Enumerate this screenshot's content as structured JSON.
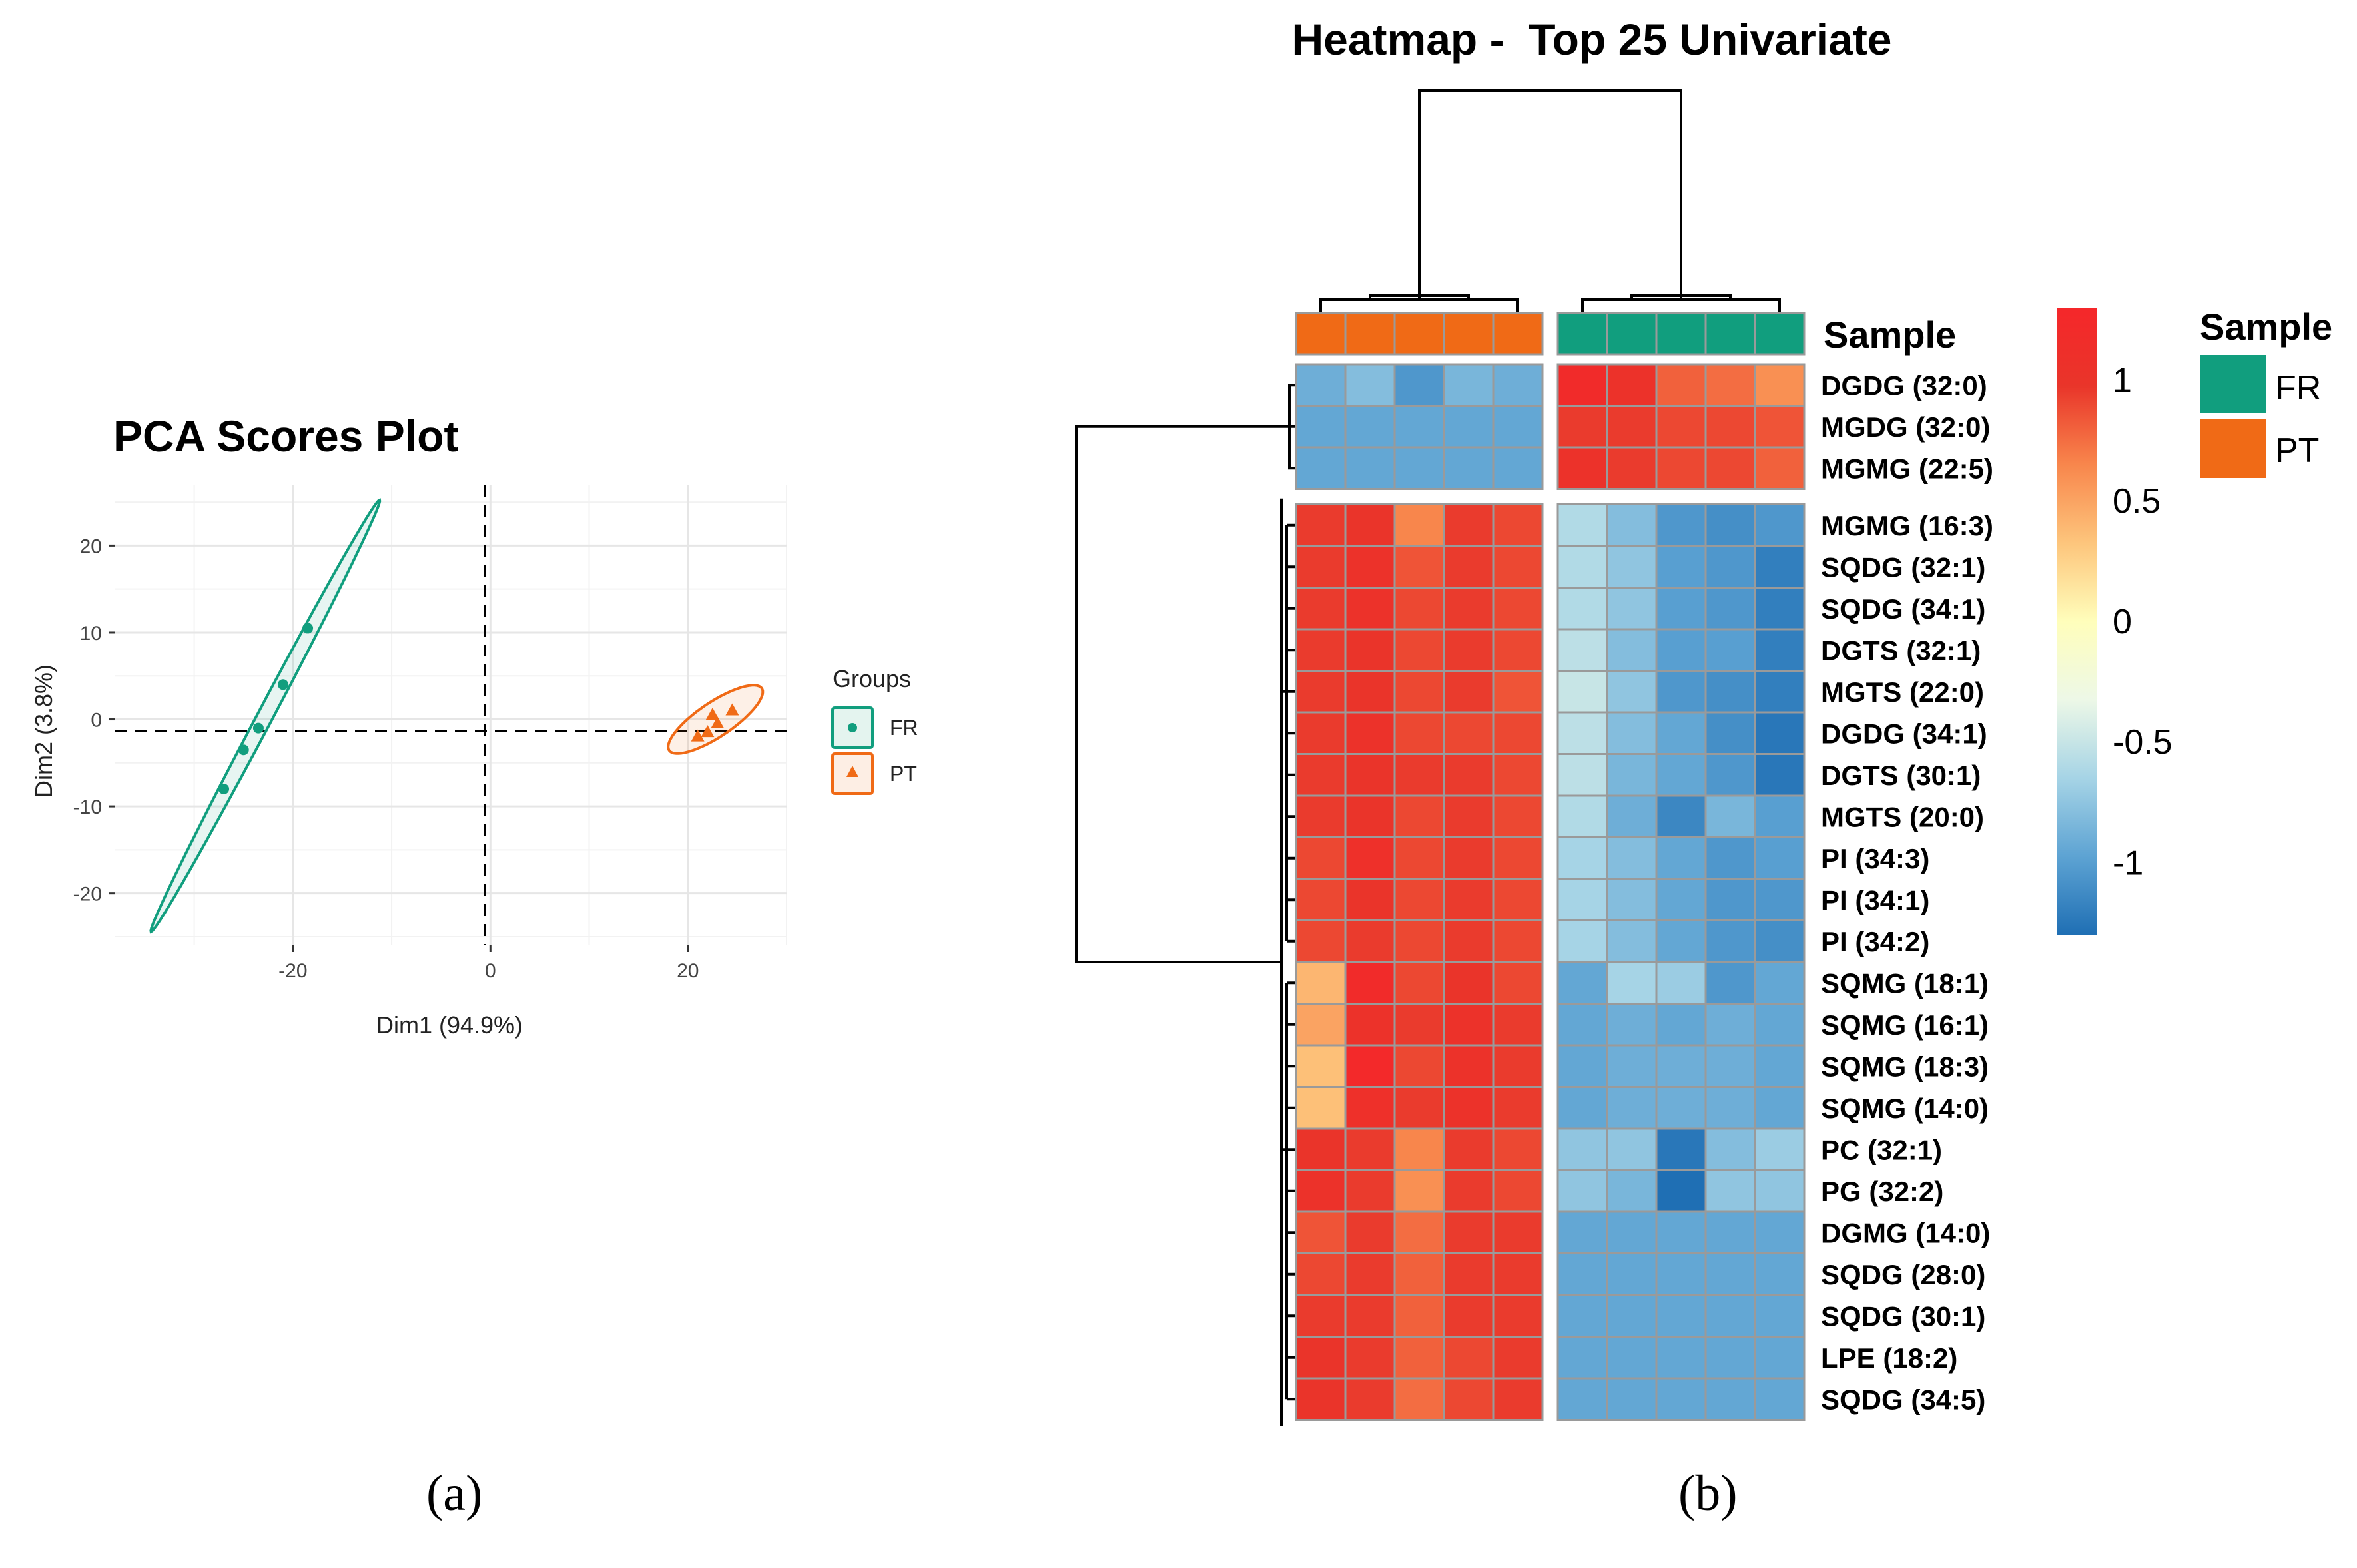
{
  "panel_labels": {
    "a": "(a)",
    "b": "(b)"
  },
  "colors": {
    "FR": "#119e7e",
    "PT": "#f06a16",
    "gradient": [
      "#1f6fb4",
      "#5da3d3",
      "#a6d4e6",
      "#edf8e7",
      "#fffebb",
      "#fdc57c",
      "#f8864c",
      "#e9352a",
      "#f5272a"
    ]
  },
  "chart_data": [
    {
      "type": "scatter",
      "title": "PCA Scores Plot",
      "xlabel": "Dim1 (94.9%)",
      "ylabel": "Dim2 (3.8%)",
      "xlim": [
        -38,
        30
      ],
      "ylim": [
        -26,
        27
      ],
      "xticks": [
        -20,
        0,
        20
      ],
      "xtick_labels": [
        "-20",
        "0",
        "20"
      ],
      "yticks": [
        -20,
        -10,
        0,
        10,
        20
      ],
      "ytick_labels": [
        "-20",
        "-10",
        "0",
        "10",
        "20"
      ],
      "legend_title": "Groups",
      "series": [
        {
          "name": "FR",
          "marker": "circle",
          "points": [
            [
              -27,
              -8
            ],
            [
              -25,
              -3.5
            ],
            [
              -23.5,
              -1
            ],
            [
              -21,
              4
            ],
            [
              -18.5,
              10.5
            ]
          ],
          "ellipse": {
            "center": [
              -22.8,
              0.4
            ],
            "semi_major": 27.4,
            "semi_minor": 0.8,
            "angle_deg": 65
          }
        },
        {
          "name": "PT",
          "marker": "triangle",
          "points": [
            [
              21,
              -2
            ],
            [
              22,
              -1.5
            ],
            [
              23,
              -0.5
            ],
            [
              22.5,
              0.5
            ],
            [
              24.5,
              1
            ]
          ],
          "ellipse": {
            "center": [
              22.8,
              0
            ],
            "semi_major": 5.9,
            "semi_minor": 1.9,
            "angle_deg": 38
          }
        }
      ]
    },
    {
      "type": "heatmap",
      "title": "Heatmap -  Top 25 Univariate",
      "column_annotation_title": "Sample",
      "legend_title": "Sample",
      "legend_groups": [
        "FR",
        "PT"
      ],
      "colorbar": {
        "min": -1.3,
        "max": 1.3,
        "ticks": [
          1,
          0.5,
          0,
          -0.5,
          -1
        ],
        "tick_labels": [
          "1",
          "0.5",
          "0",
          "-0.5",
          "-1"
        ]
      },
      "column_groups": [
        "PT",
        "PT",
        "PT",
        "PT",
        "PT",
        "FR",
        "FR",
        "FR",
        "FR",
        "FR"
      ],
      "row_split_after": 2,
      "column_split_after": 4,
      "rows": [
        "DGDG (32:0)",
        "MGDG (32:0)",
        "MGMG (22:5)",
        "MGMG (16:3)",
        "SQDG (32:1)",
        "SQDG (34:1)",
        "DGTS (32:1)",
        "MGTS (22:0)",
        "DGDG (34:1)",
        "DGTS (30:1)",
        "MGTS (20:0)",
        "PI (34:3)",
        "PI (34:1)",
        "PI (34:2)",
        "SQMG (18:1)",
        "SQMG (16:1)",
        "SQMG (18:3)",
        "SQMG (14:0)",
        "PC (32:1)",
        "PG (32:2)",
        "DGMG (14:0)",
        "SQDG (28:0)",
        "SQDG (30:1)",
        "LPE (18:2)",
        "SQDG (34:5)"
      ],
      "values": [
        [
          -0.9,
          -0.8,
          -1.05,
          -0.85,
          -0.9,
          1.2,
          1.05,
          0.8,
          0.75,
          0.6
        ],
        [
          -0.95,
          -0.95,
          -0.95,
          -0.95,
          -0.95,
          0.95,
          0.95,
          0.9,
          0.9,
          0.85
        ],
        [
          -0.95,
          -0.95,
          -0.95,
          -0.95,
          -0.95,
          1.05,
          0.95,
          0.9,
          0.9,
          0.8
        ],
        [
          0.95,
          1.0,
          0.65,
          0.95,
          0.9,
          -0.6,
          -0.8,
          -1.05,
          -1.1,
          -1.05
        ],
        [
          0.95,
          1.05,
          0.85,
          0.95,
          0.9,
          -0.6,
          -0.75,
          -1.0,
          -1.05,
          -1.2
        ],
        [
          0.95,
          1.05,
          0.9,
          0.95,
          0.9,
          -0.6,
          -0.75,
          -1.0,
          -1.05,
          -1.2
        ],
        [
          0.95,
          1.0,
          0.9,
          0.95,
          0.9,
          -0.55,
          -0.8,
          -1.0,
          -1.0,
          -1.2
        ],
        [
          0.95,
          1.0,
          0.9,
          0.95,
          0.85,
          -0.5,
          -0.75,
          -1.05,
          -1.1,
          -1.2
        ],
        [
          0.95,
          1.05,
          0.9,
          0.9,
          0.9,
          -0.55,
          -0.8,
          -0.95,
          -1.1,
          -1.25
        ],
        [
          0.95,
          1.0,
          0.95,
          0.95,
          0.9,
          -0.55,
          -0.85,
          -0.95,
          -1.05,
          -1.25
        ],
        [
          0.95,
          1.0,
          0.9,
          0.95,
          0.9,
          -0.6,
          -0.9,
          -1.15,
          -0.85,
          -1.0
        ],
        [
          0.9,
          1.1,
          0.9,
          0.95,
          0.9,
          -0.65,
          -0.8,
          -0.95,
          -1.05,
          -1.0
        ],
        [
          0.9,
          1.0,
          0.9,
          0.95,
          0.9,
          -0.65,
          -0.8,
          -0.95,
          -1.05,
          -1.05
        ],
        [
          0.9,
          0.95,
          0.9,
          0.95,
          0.9,
          -0.65,
          -0.8,
          -0.95,
          -1.05,
          -1.1
        ],
        [
          0.4,
          1.2,
          0.9,
          1.0,
          0.9,
          -0.95,
          -0.65,
          -0.7,
          -1.05,
          -0.95
        ],
        [
          0.5,
          1.05,
          0.95,
          1.05,
          0.95,
          -0.95,
          -0.9,
          -0.95,
          -0.9,
          -0.95
        ],
        [
          0.35,
          1.25,
          0.9,
          1.05,
          0.95,
          -0.95,
          -0.9,
          -0.9,
          -0.9,
          -0.95
        ],
        [
          0.35,
          1.1,
          0.95,
          1.05,
          0.95,
          -0.95,
          -0.9,
          -0.9,
          -0.9,
          -0.95
        ],
        [
          1.0,
          0.95,
          0.65,
          0.95,
          0.9,
          -0.75,
          -0.75,
          -1.25,
          -0.8,
          -0.7
        ],
        [
          1.05,
          0.95,
          0.6,
          0.95,
          0.9,
          -0.75,
          -0.85,
          -1.35,
          -0.75,
          -0.75
        ],
        [
          0.85,
          0.95,
          0.75,
          0.95,
          0.95,
          -0.95,
          -0.95,
          -0.95,
          -0.95,
          -0.95
        ],
        [
          0.9,
          0.95,
          0.8,
          0.95,
          0.95,
          -0.95,
          -0.95,
          -0.95,
          -0.95,
          -0.95
        ],
        [
          0.95,
          0.95,
          0.8,
          0.95,
          0.95,
          -0.95,
          -0.95,
          -0.95,
          -0.95,
          -0.95
        ],
        [
          1.0,
          0.95,
          0.8,
          0.9,
          0.95,
          -0.95,
          -0.95,
          -0.95,
          -0.95,
          -0.95
        ],
        [
          1.0,
          0.95,
          0.75,
          0.9,
          0.95,
          -0.95,
          -0.95,
          -0.95,
          -0.95,
          -0.95
        ]
      ]
    }
  ]
}
